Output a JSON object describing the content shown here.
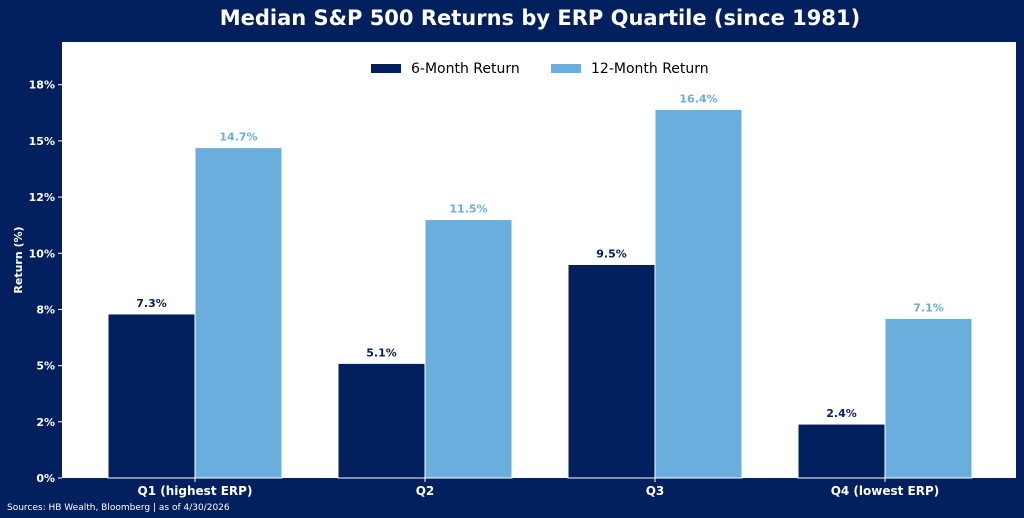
{
  "chart_data": {
    "type": "bar",
    "title": "Median S&P 500 Returns by ERP Quartile (since 1981)",
    "ylabel": "Return (%)",
    "xlabel": "",
    "categories": [
      "Q1 (highest ERP)",
      "Q2",
      "Q3",
      "Q4 (lowest ERP)"
    ],
    "series": [
      {
        "name": "6-Month Return",
        "values": [
          7.3,
          5.1,
          9.5,
          2.4
        ],
        "color": "#021f5e",
        "labels": [
          "7.3%",
          "5.1%",
          "9.5%",
          "2.4%"
        ],
        "label_color": "#021f5e"
      },
      {
        "name": "12-Month Return",
        "values": [
          14.7,
          11.5,
          16.4,
          7.1
        ],
        "color": "#6aaede",
        "labels": [
          "14.7%",
          "11.5%",
          "16.4%",
          "7.1%"
        ],
        "label_color": "#6aaede"
      }
    ],
    "yticks": [
      0,
      2.5,
      5,
      7.5,
      10,
      12.5,
      15,
      17.5
    ],
    "ytick_labels": [
      "0%",
      "2%",
      "5%",
      "8%",
      "10%",
      "12%",
      "15%",
      "18%"
    ],
    "ylim": [
      0,
      19.4
    ],
    "grid": false,
    "legend_position": "top-center",
    "source": "Sources: HB Wealth, Bloomberg | as of 4/30/2026"
  }
}
